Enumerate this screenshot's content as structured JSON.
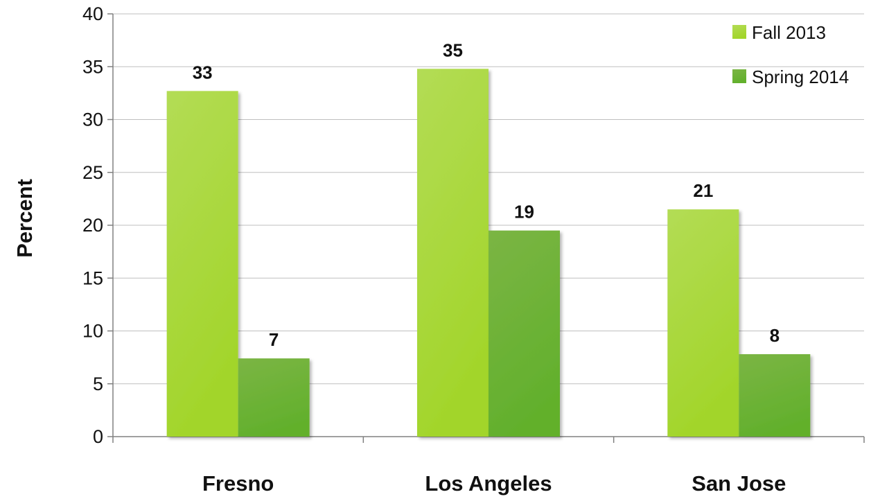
{
  "chart_data": {
    "type": "bar",
    "title": "",
    "xlabel": "",
    "ylabel": "Percent",
    "categories": [
      "Fresno",
      "Los Angeles",
      "San Jose"
    ],
    "series": [
      {
        "name": "Fall 2013",
        "values": [
          32.7,
          34.8,
          21.5
        ],
        "labels": [
          "33",
          "35",
          "21"
        ],
        "color": "#a6d63a"
      },
      {
        "name": "Spring 2014",
        "values": [
          7.4,
          19.5,
          7.8
        ],
        "labels": [
          "7",
          "19",
          "8"
        ],
        "color": "#6db33f"
      }
    ],
    "ylim": [
      0,
      40
    ],
    "yticks": [
      "0",
      "5",
      "10",
      "15",
      "20",
      "25",
      "30",
      "35",
      "40"
    ],
    "grid": true,
    "legend_position": "top-right"
  }
}
